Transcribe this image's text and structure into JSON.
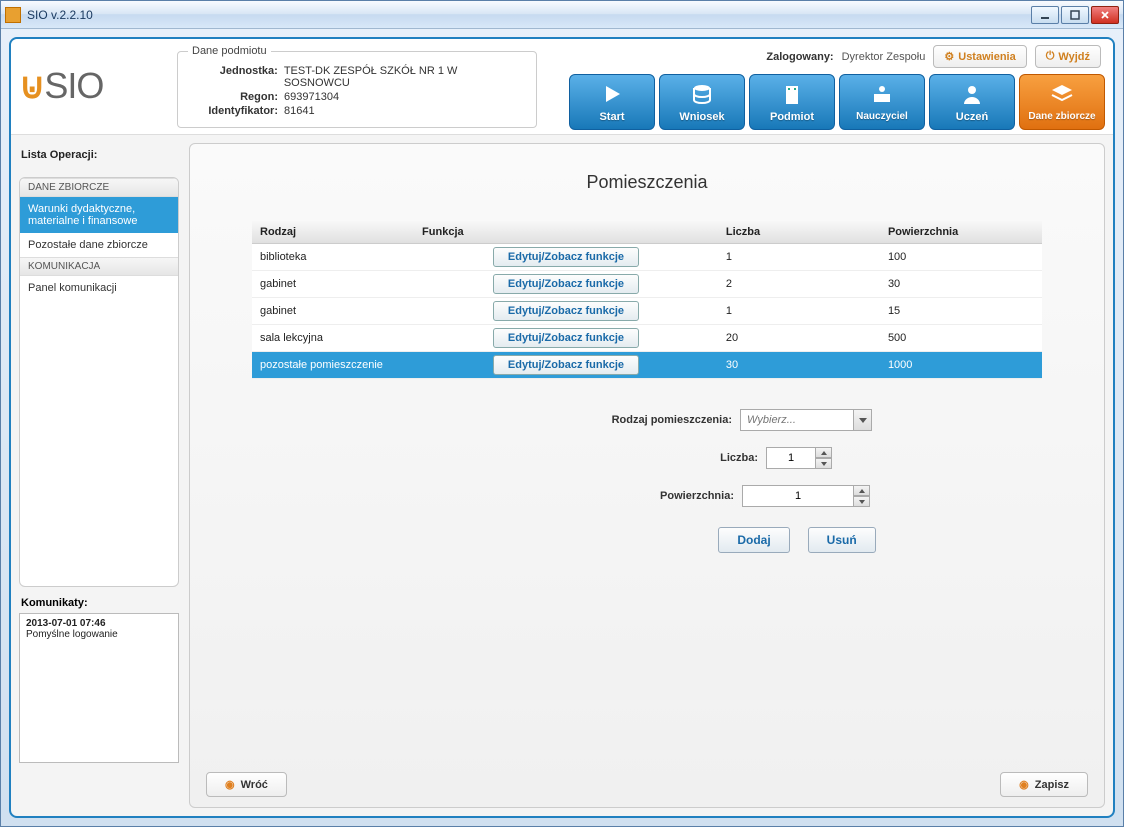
{
  "window": {
    "title": "SIO v.2.2.10"
  },
  "logo": {
    "text_prefix": "",
    "text": "SIO"
  },
  "entity_info": {
    "legend": "Dane podmiotu",
    "rows": [
      {
        "label": "Jednostka:",
        "value": "TEST-DK ZESPÓŁ SZKÓŁ NR 1 W SOSNOWCU"
      },
      {
        "label": "Regon:",
        "value": "693971304"
      },
      {
        "label": "Identyfikator:",
        "value": "81641"
      }
    ]
  },
  "header_right": {
    "logged_label": "Zalogowany:",
    "logged_value": "Dyrektor Zespołu",
    "settings_btn": "Ustawienia",
    "logout_btn": "Wyjdź"
  },
  "nav": [
    {
      "label": "Start",
      "icon": "play"
    },
    {
      "label": "Wniosek",
      "icon": "stack"
    },
    {
      "label": "Podmiot",
      "icon": "building"
    },
    {
      "label": "Nauczyciel",
      "icon": "teacher"
    },
    {
      "label": "Uczeń",
      "icon": "student"
    },
    {
      "label": "Dane zbiorcze",
      "icon": "layers",
      "active": true
    }
  ],
  "sidebar": {
    "title": "Lista Operacji:",
    "groups": [
      {
        "header": "DANE ZBIORCZE",
        "items": [
          {
            "label": "Warunki dydaktyczne, materialne i finansowe",
            "selected": true
          },
          {
            "label": "Pozostałe dane zbiorcze",
            "selected": false
          }
        ]
      },
      {
        "header": "KOMUNIKACJA",
        "items": [
          {
            "label": "Panel komunikacji",
            "selected": false
          }
        ]
      }
    ]
  },
  "messages": {
    "title": "Komunikaty:",
    "entries": [
      {
        "time": "2013-07-01 07:46",
        "text": "Pomyślne logowanie"
      }
    ]
  },
  "main": {
    "title": "Pomieszczenia",
    "columns": {
      "rodzaj": "Rodzaj",
      "funkcja": "Funkcja",
      "liczba": "Liczba",
      "pow": "Powierzchnia"
    },
    "edit_btn": "Edytuj/Zobacz funkcje",
    "rows": [
      {
        "rodzaj": "biblioteka",
        "liczba": "1",
        "pow": "100",
        "selected": false
      },
      {
        "rodzaj": "gabinet",
        "liczba": "2",
        "pow": "30",
        "selected": false
      },
      {
        "rodzaj": "gabinet",
        "liczba": "1",
        "pow": "15",
        "selected": false
      },
      {
        "rodzaj": "sala lekcyjna",
        "liczba": "20",
        "pow": "500",
        "selected": false
      },
      {
        "rodzaj": "pozostałe pomieszczenie",
        "liczba": "30",
        "pow": "1000",
        "selected": true
      }
    ],
    "form": {
      "rodzaj_label": "Rodzaj pomieszczenia:",
      "rodzaj_placeholder": "Wybierz...",
      "liczba_label": "Liczba:",
      "liczba_value": "1",
      "pow_label": "Powierzchnia:",
      "pow_value": "1",
      "add_btn": "Dodaj",
      "del_btn": "Usuń"
    },
    "footer": {
      "back": "Wróć",
      "save": "Zapisz"
    }
  },
  "colors": {
    "accent_blue": "#2e9cd8",
    "accent_orange": "#e07a10",
    "tile_blue_top": "#5ab0e8",
    "tile_blue_bot": "#1878b8"
  }
}
